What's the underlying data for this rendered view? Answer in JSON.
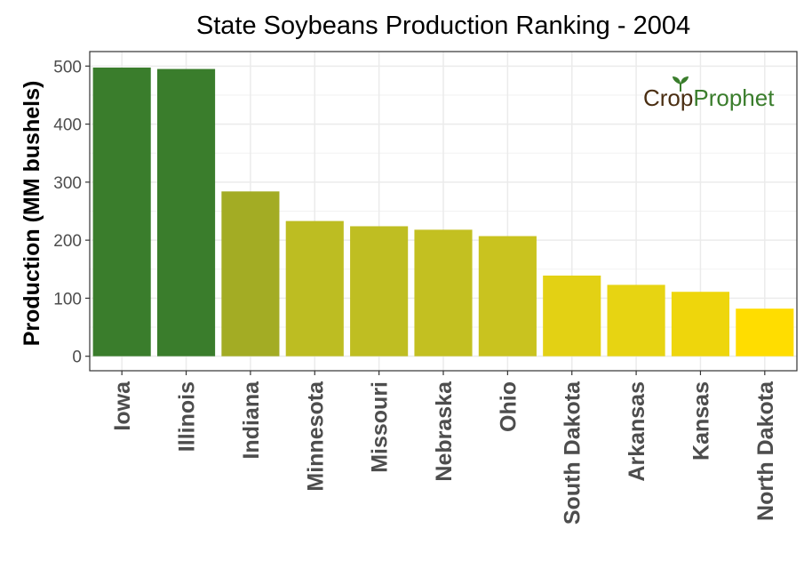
{
  "chart_data": {
    "type": "bar",
    "title": "State Soybeans Production Ranking - 2004",
    "xlabel": "",
    "ylabel": "Production (MM bushels)",
    "ylim": [
      -25,
      525
    ],
    "yticks": [
      0,
      100,
      200,
      300,
      400,
      500
    ],
    "grid": true,
    "categories": [
      "Iowa",
      "Illinois",
      "Indiana",
      "Minnesota",
      "Missouri",
      "Nebraska",
      "Ohio",
      "South Dakota",
      "Arkansas",
      "Kansas",
      "North Dakota"
    ],
    "values": [
      497.4,
      495,
      284,
      233,
      224,
      218,
      207,
      139,
      123,
      111,
      82
    ],
    "colors": [
      "#3a7d2c",
      "#3a7d2c",
      "#a3ac24",
      "#bdbd22",
      "#bfbe22",
      "#c3c021",
      "#c9c31f",
      "#e3d114",
      "#e7d412",
      "#eed60c",
      "#ffdd00"
    ]
  },
  "watermark": {
    "crop": "Crop",
    "prophet": "Prophet",
    "icon": "sprout-icon"
  }
}
